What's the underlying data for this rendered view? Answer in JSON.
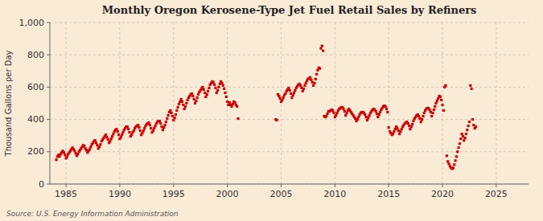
{
  "chart_data": {
    "type": "scatter",
    "title": "Monthly Oregon Kerosene-Type Jet Fuel Retail Sales by Refiners",
    "ylabel": "Thousand Gallons per Day",
    "annotations": [
      "Source: U.S. Energy Information Administration"
    ],
    "color": "#cc0000",
    "marker": "square",
    "grid": true,
    "xlim": [
      1983.5,
      2028.0
    ],
    "ylim": [
      0,
      1000
    ],
    "xticks": [
      1985,
      1990,
      1995,
      2000,
      2005,
      2010,
      2015,
      2020,
      2025
    ],
    "yticks": [
      0,
      200,
      400,
      600,
      800,
      {
        "value": 1000,
        "label": "1,000"
      }
    ],
    "x": [
      1984.1,
      1984.2,
      1984.3,
      1984.4,
      1984.5,
      1984.6,
      1984.7,
      1984.8,
      1984.9,
      1985.0,
      1985.1,
      1985.2,
      1985.3,
      1985.4,
      1985.5,
      1985.6,
      1985.7,
      1985.8,
      1985.9,
      1986.0,
      1986.1,
      1986.2,
      1986.3,
      1986.4,
      1986.5,
      1986.6,
      1986.7,
      1986.8,
      1986.9,
      1987.0,
      1987.1,
      1987.2,
      1987.3,
      1987.4,
      1987.5,
      1987.6,
      1987.7,
      1987.8,
      1987.9,
      1988.0,
      1988.1,
      1988.2,
      1988.3,
      1988.4,
      1988.5,
      1988.6,
      1988.7,
      1988.8,
      1988.9,
      1989.0,
      1989.1,
      1989.2,
      1989.3,
      1989.4,
      1989.5,
      1989.6,
      1989.7,
      1989.8,
      1989.9,
      1990.0,
      1990.1,
      1990.2,
      1990.3,
      1990.4,
      1990.5,
      1990.6,
      1990.7,
      1990.8,
      1990.9,
      1991.0,
      1991.1,
      1991.2,
      1991.3,
      1991.4,
      1991.5,
      1991.6,
      1991.7,
      1991.8,
      1991.9,
      1992.0,
      1992.1,
      1992.2,
      1992.3,
      1992.4,
      1992.5,
      1992.6,
      1992.7,
      1992.8,
      1992.9,
      1993.0,
      1993.1,
      1993.2,
      1993.3,
      1993.4,
      1993.5,
      1993.6,
      1993.7,
      1993.8,
      1993.9,
      1994.0,
      1994.1,
      1994.2,
      1994.3,
      1994.4,
      1994.5,
      1994.6,
      1994.7,
      1994.8,
      1994.9,
      1995.0,
      1995.1,
      1995.2,
      1995.3,
      1995.4,
      1995.5,
      1995.6,
      1995.7,
      1995.8,
      1995.9,
      1996.0,
      1996.1,
      1996.2,
      1996.3,
      1996.4,
      1996.5,
      1996.6,
      1996.7,
      1996.8,
      1996.9,
      1997.0,
      1997.1,
      1997.2,
      1997.3,
      1997.4,
      1997.5,
      1997.6,
      1997.7,
      1997.8,
      1997.9,
      1998.0,
      1998.1,
      1998.2,
      1998.3,
      1998.4,
      1998.5,
      1998.6,
      1998.7,
      1998.8,
      1998.9,
      1999.0,
      1999.1,
      1999.2,
      1999.3,
      1999.4,
      1999.5,
      1999.6,
      1999.7,
      1999.8,
      1999.9,
      2000.0,
      2000.1,
      2000.2,
      2000.3,
      2000.4,
      2000.5,
      2000.6,
      2000.7,
      2000.8,
      2000.9,
      2001.0,
      2004.5,
      2004.6,
      2004.7,
      2004.8,
      2004.9,
      2005.0,
      2005.1,
      2005.2,
      2005.3,
      2005.4,
      2005.5,
      2005.6,
      2005.7,
      2005.8,
      2005.9,
      2006.0,
      2006.1,
      2006.2,
      2006.3,
      2006.4,
      2006.5,
      2006.6,
      2006.7,
      2006.8,
      2006.9,
      2007.0,
      2007.1,
      2007.2,
      2007.3,
      2007.4,
      2007.5,
      2007.6,
      2007.7,
      2007.8,
      2007.9,
      2008.0,
      2008.1,
      2008.2,
      2008.3,
      2008.4,
      2008.5,
      2008.6,
      2008.7,
      2008.8,
      2008.9,
      2009.0,
      2009.1,
      2009.2,
      2009.3,
      2009.4,
      2009.5,
      2009.6,
      2009.7,
      2009.8,
      2009.9,
      2010.0,
      2010.1,
      2010.2,
      2010.3,
      2010.4,
      2010.5,
      2010.6,
      2010.7,
      2010.8,
      2010.9,
      2011.0,
      2011.1,
      2011.2,
      2011.3,
      2011.4,
      2011.5,
      2011.6,
      2011.7,
      2011.8,
      2011.9,
      2012.0,
      2012.1,
      2012.2,
      2012.3,
      2012.4,
      2012.5,
      2012.6,
      2012.7,
      2012.8,
      2012.9,
      2013.0,
      2013.1,
      2013.2,
      2013.3,
      2013.4,
      2013.5,
      2013.6,
      2013.7,
      2013.8,
      2013.9,
      2014.0,
      2014.1,
      2014.2,
      2014.3,
      2014.4,
      2014.5,
      2014.6,
      2014.7,
      2014.8,
      2014.9,
      2015.0,
      2015.1,
      2015.2,
      2015.3,
      2015.4,
      2015.5,
      2015.6,
      2015.7,
      2015.8,
      2015.9,
      2016.0,
      2016.1,
      2016.2,
      2016.3,
      2016.4,
      2016.5,
      2016.6,
      2016.7,
      2016.8,
      2016.9,
      2017.0,
      2017.1,
      2017.2,
      2017.3,
      2017.4,
      2017.5,
      2017.6,
      2017.7,
      2017.8,
      2017.9,
      2018.0,
      2018.1,
      2018.2,
      2018.3,
      2018.4,
      2018.5,
      2018.6,
      2018.7,
      2018.8,
      2018.9,
      2019.0,
      2019.1,
      2019.2,
      2019.3,
      2019.4,
      2019.5,
      2019.6,
      2019.7,
      2019.8,
      2019.9,
      2020.0,
      2020.1,
      2020.2,
      2020.3,
      2020.4,
      2020.5,
      2020.6,
      2020.7,
      2020.8,
      2020.9,
      2021.0,
      2021.1,
      2021.2,
      2021.3,
      2021.4,
      2021.5,
      2021.6,
      2021.7,
      2021.8,
      2021.9,
      2022.0,
      2022.1,
      2022.2,
      2022.3,
      2022.4,
      2022.5,
      2022.6,
      2022.7,
      2022.8,
      2022.9,
      2023.0,
      2023.1
    ],
    "values": [
      150,
      170,
      180,
      170,
      185,
      195,
      205,
      195,
      180,
      160,
      170,
      185,
      195,
      205,
      215,
      225,
      215,
      205,
      190,
      175,
      185,
      200,
      210,
      220,
      230,
      240,
      235,
      220,
      210,
      195,
      205,
      215,
      230,
      245,
      255,
      265,
      270,
      255,
      240,
      220,
      230,
      245,
      265,
      275,
      285,
      295,
      305,
      290,
      275,
      255,
      265,
      280,
      295,
      310,
      325,
      335,
      340,
      325,
      305,
      280,
      290,
      305,
      320,
      335,
      345,
      355,
      355,
      340,
      320,
      295,
      305,
      320,
      330,
      345,
      355,
      360,
      365,
      350,
      330,
      305,
      315,
      330,
      345,
      360,
      370,
      375,
      380,
      365,
      345,
      320,
      330,
      345,
      360,
      375,
      385,
      390,
      390,
      375,
      355,
      335,
      350,
      365,
      385,
      405,
      425,
      445,
      455,
      440,
      420,
      395,
      410,
      430,
      455,
      475,
      495,
      510,
      525,
      510,
      490,
      465,
      480,
      500,
      520,
      535,
      545,
      555,
      560,
      545,
      525,
      500,
      515,
      535,
      555,
      570,
      580,
      590,
      600,
      585,
      565,
      540,
      555,
      575,
      595,
      615,
      625,
      635,
      630,
      615,
      595,
      565,
      580,
      600,
      620,
      635,
      625,
      610,
      590,
      565,
      540,
      510,
      490,
      505,
      490,
      480,
      495,
      510,
      505,
      490,
      480,
      405,
      400,
      395,
      555,
      545,
      530,
      510,
      520,
      535,
      550,
      560,
      575,
      585,
      595,
      580,
      560,
      535,
      550,
      565,
      580,
      595,
      605,
      615,
      620,
      610,
      595,
      575,
      590,
      610,
      625,
      640,
      650,
      655,
      660,
      645,
      630,
      610,
      625,
      650,
      680,
      705,
      720,
      715,
      840,
      855,
      825,
      420,
      415,
      420,
      435,
      450,
      450,
      455,
      460,
      455,
      440,
      415,
      425,
      440,
      455,
      465,
      470,
      475,
      475,
      465,
      450,
      425,
      440,
      455,
      465,
      455,
      445,
      435,
      425,
      415,
      405,
      390,
      400,
      415,
      430,
      440,
      445,
      445,
      440,
      430,
      415,
      395,
      410,
      425,
      440,
      450,
      460,
      465,
      460,
      450,
      435,
      415,
      430,
      445,
      460,
      470,
      480,
      485,
      480,
      465,
      445,
      350,
      325,
      315,
      305,
      310,
      325,
      340,
      355,
      345,
      330,
      310,
      325,
      340,
      355,
      365,
      375,
      380,
      385,
      375,
      360,
      340,
      355,
      370,
      390,
      405,
      415,
      425,
      430,
      420,
      405,
      385,
      400,
      420,
      440,
      455,
      465,
      470,
      470,
      460,
      445,
      420,
      440,
      460,
      480,
      500,
      515,
      530,
      545,
      540,
      520,
      490,
      455,
      600,
      610,
      175,
      140,
      125,
      110,
      100,
      95,
      100,
      120,
      145,
      170,
      200,
      225,
      250,
      280,
      310,
      295,
      270,
      285,
      310,
      335,
      360,
      385,
      610,
      590,
      400,
      365,
      345,
      355
    ]
  }
}
